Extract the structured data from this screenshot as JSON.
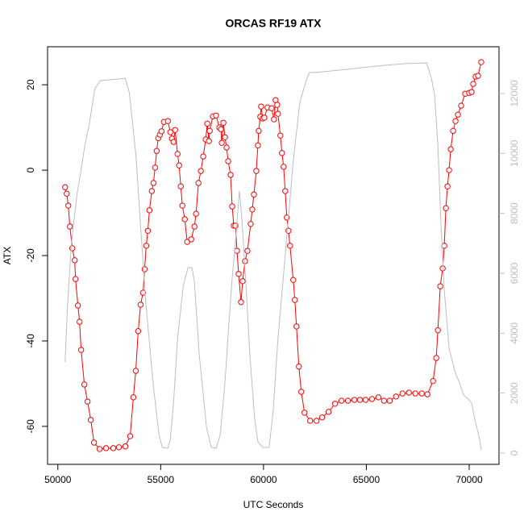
{
  "chart_data": {
    "type": "line",
    "title": "ORCAS RF19 ATX",
    "xlabel": "UTC Seconds",
    "ylabel": "ATX",
    "xlim": [
      49500,
      71450
    ],
    "xticks": [
      50000,
      55000,
      60000,
      65000,
      70000
    ],
    "ylim": [
      -68.9,
      28.9
    ],
    "yticks": [
      -60,
      -40,
      -20,
      0,
      20
    ],
    "y2lim": [
      -377,
      13560
    ],
    "y2ticks": [
      0,
      2000,
      4000,
      6000,
      8000,
      10000,
      12000
    ],
    "series": [
      {
        "color": "#ff0000",
        "markers": true,
        "x": [
          50352,
          50430,
          50508,
          50586,
          50703,
          50820,
          50859,
          50977,
          51055,
          51133,
          51289,
          51445,
          51602,
          51758,
          52031,
          52344,
          52695,
          52969,
          53281,
          53516,
          53672,
          53789,
          53906,
          54023,
          54141,
          54219,
          54297,
          54375,
          54453,
          54570,
          54648,
          54727,
          54805,
          54883,
          54961,
          55039,
          55156,
          55352,
          55469,
          55547,
          55625,
          55703,
          55820,
          55898,
          55977,
          56055,
          56172,
          56289,
          56484,
          56641,
          56719,
          56836,
          56953,
          57070,
          57188,
          57266,
          57344,
          57383,
          57539,
          57695,
          57852,
          57930,
          57969,
          58047,
          58125,
          58203,
          58281,
          58398,
          58477,
          58555,
          58633,
          58711,
          58789,
          58906,
          58984,
          59102,
          59219,
          59375,
          59453,
          59531,
          59648,
          59727,
          59766,
          59844,
          59883,
          59961,
          60039,
          60195,
          60391,
          60508,
          60586,
          60664,
          60703,
          60820,
          60898,
          60977,
          61055,
          61133,
          61211,
          61289,
          61445,
          61523,
          61602,
          61719,
          61836,
          61992,
          62266,
          62578,
          62852,
          63164,
          63477,
          63789,
          64102,
          64414,
          64688,
          64961,
          65273,
          65586,
          65859,
          66133,
          66445,
          66758,
          67070,
          67383,
          67695,
          67969,
          68242,
          68398,
          68477,
          68594,
          68711,
          68789,
          68867,
          68945,
          69023,
          69102,
          69219,
          69336,
          69453,
          69609,
          69805,
          70000,
          70117,
          70195,
          70313,
          70430,
          70586
        ],
        "values": [
          -4.0,
          -5.5,
          -8.3,
          -13.2,
          -18.3,
          -21.1,
          -25.5,
          -31.7,
          -35.5,
          -42.1,
          -50.2,
          -54.2,
          -58.5,
          -63.8,
          -65.3,
          -65.1,
          -65.1,
          -64.9,
          -64.7,
          -62.3,
          -53.2,
          -47.0,
          -37.7,
          -31.5,
          -28.7,
          -23.2,
          -17.7,
          -14.2,
          -9.4,
          -4.9,
          -3.0,
          0.6,
          4.5,
          7.5,
          8.3,
          9.1,
          11.3,
          11.5,
          8.9,
          7.4,
          6.6,
          9.4,
          3.8,
          1.1,
          -3.8,
          -8.3,
          -11.5,
          -16.8,
          -16.2,
          -13.2,
          -10.2,
          -3.0,
          -0.2,
          3.2,
          7.2,
          10.9,
          6.8,
          9.2,
          12.6,
          12.8,
          10.0,
          9.6,
          6.4,
          11.1,
          7.7,
          5.3,
          2.1,
          -1.1,
          -8.5,
          -13.0,
          -13.0,
          -18.9,
          -24.3,
          -30.9,
          -26.0,
          -21.3,
          -18.9,
          -12.6,
          -9.2,
          -5.7,
          -0.2,
          5.8,
          9.2,
          12.5,
          14.9,
          12.1,
          12.3,
          14.7,
          14.5,
          11.9,
          16.4,
          15.3,
          13.2,
          8.1,
          4.0,
          0.8,
          -4.9,
          -11.1,
          -14.2,
          -17.7,
          -25.7,
          -30.4,
          -36.6,
          -46.0,
          -51.9,
          -56.8,
          -58.7,
          -58.7,
          -57.9,
          -56.6,
          -54.7,
          -54.0,
          -54.0,
          -53.8,
          -53.8,
          -53.8,
          -53.6,
          -53.2,
          -54.0,
          -54.0,
          -53.0,
          -52.3,
          -52.1,
          -52.3,
          -52.3,
          -52.5,
          -49.4,
          -44.0,
          -37.5,
          -27.2,
          -23.0,
          -17.7,
          -8.9,
          -3.8,
          0.0,
          4.9,
          9.2,
          11.5,
          13.0,
          15.1,
          17.9,
          18.1,
          18.3,
          20.2,
          21.9,
          22.1,
          25.3
        ]
      },
      {
        "color": "#bebebe",
        "axis": "y2",
        "markers": false,
        "x": [
          50352,
          50469,
          50664,
          50938,
          51133,
          51328,
          51523,
          51797,
          52070,
          52422,
          52891,
          53281,
          53477,
          53789,
          54258,
          54648,
          54922,
          55078,
          55352,
          55469,
          55625,
          55820,
          56094,
          56328,
          56523,
          56641,
          56875,
          57227,
          57461,
          57695,
          57891,
          58125,
          58320,
          58477,
          58633,
          58828,
          58945,
          59141,
          59336,
          59570,
          59727,
          59961,
          60273,
          60469,
          60703,
          60977,
          61211,
          61445,
          61758,
          62070,
          62227,
          62852,
          64023,
          65391,
          66758,
          67930,
          68164,
          68320,
          68477,
          68633,
          68789,
          69023,
          69297,
          69531,
          69727,
          69961,
          70117,
          70273,
          70508,
          70586
        ],
        "values": [
          3040,
          4896,
          7048,
          8662,
          9469,
          10330,
          10948,
          12159,
          12428,
          12455,
          12482,
          12509,
          12024,
          10007,
          5165,
          2206,
          592,
          188,
          161,
          457,
          1668,
          3820,
          5568,
          6187,
          6187,
          5703,
          3282,
          861,
          188,
          161,
          592,
          2340,
          4358,
          5837,
          7048,
          8743,
          7855,
          5703,
          3282,
          1130,
          377,
          188,
          188,
          1399,
          3820,
          5972,
          7855,
          9738,
          11675,
          12428,
          12697,
          12724,
          12804,
          12912,
          12993,
          13020,
          12509,
          11944,
          10276,
          7586,
          5434,
          3497,
          2744,
          2340,
          1937,
          1802,
          1668,
          1130,
          457,
          108
        ]
      }
    ]
  }
}
